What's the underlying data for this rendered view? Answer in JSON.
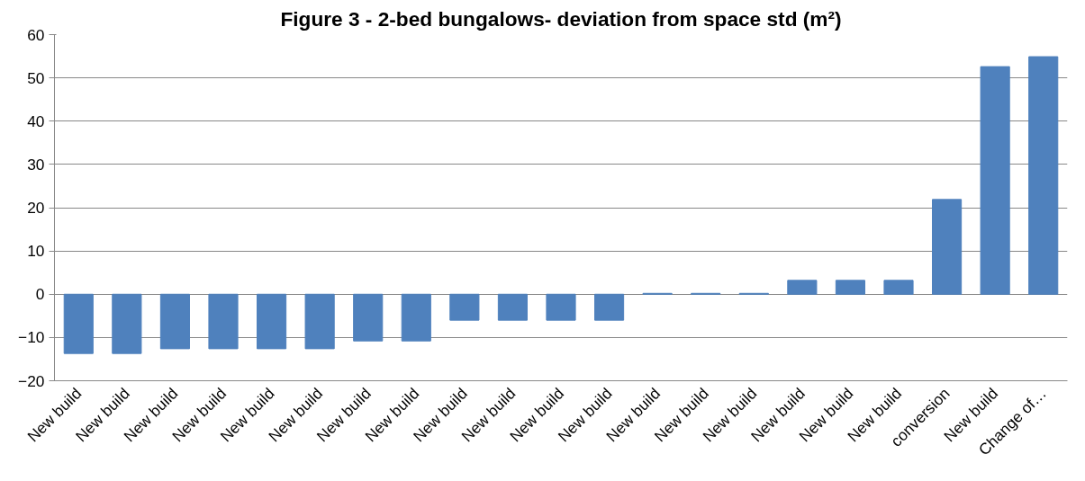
{
  "chart_data": {
    "type": "bar",
    "title": "Figure 3 - 2-bed bungalows- deviation from space std (m²)",
    "categories": [
      "New build",
      "New build",
      "New build",
      "New build",
      "New build",
      "New build",
      "New build",
      "New build",
      "New build",
      "New build",
      "New build",
      "New build",
      "New build",
      "New build",
      "New build",
      "New build",
      "New build",
      "New build",
      "conversion",
      "New build",
      "Change of…"
    ],
    "values": [
      -13.7,
      -13.7,
      -12.6,
      -12.6,
      -12.6,
      -12.6,
      -10.8,
      -10.8,
      -6,
      -6,
      -6,
      -6,
      0.2,
      0.2,
      0.2,
      3.2,
      3.2,
      3.2,
      21.9,
      52.6,
      54.9
    ],
    "color": "#4f81bd",
    "ylim": [
      -20,
      60
    ],
    "yticks": [
      -20,
      -10,
      0,
      10,
      20,
      30,
      40,
      50,
      60
    ],
    "grid": "y"
  }
}
